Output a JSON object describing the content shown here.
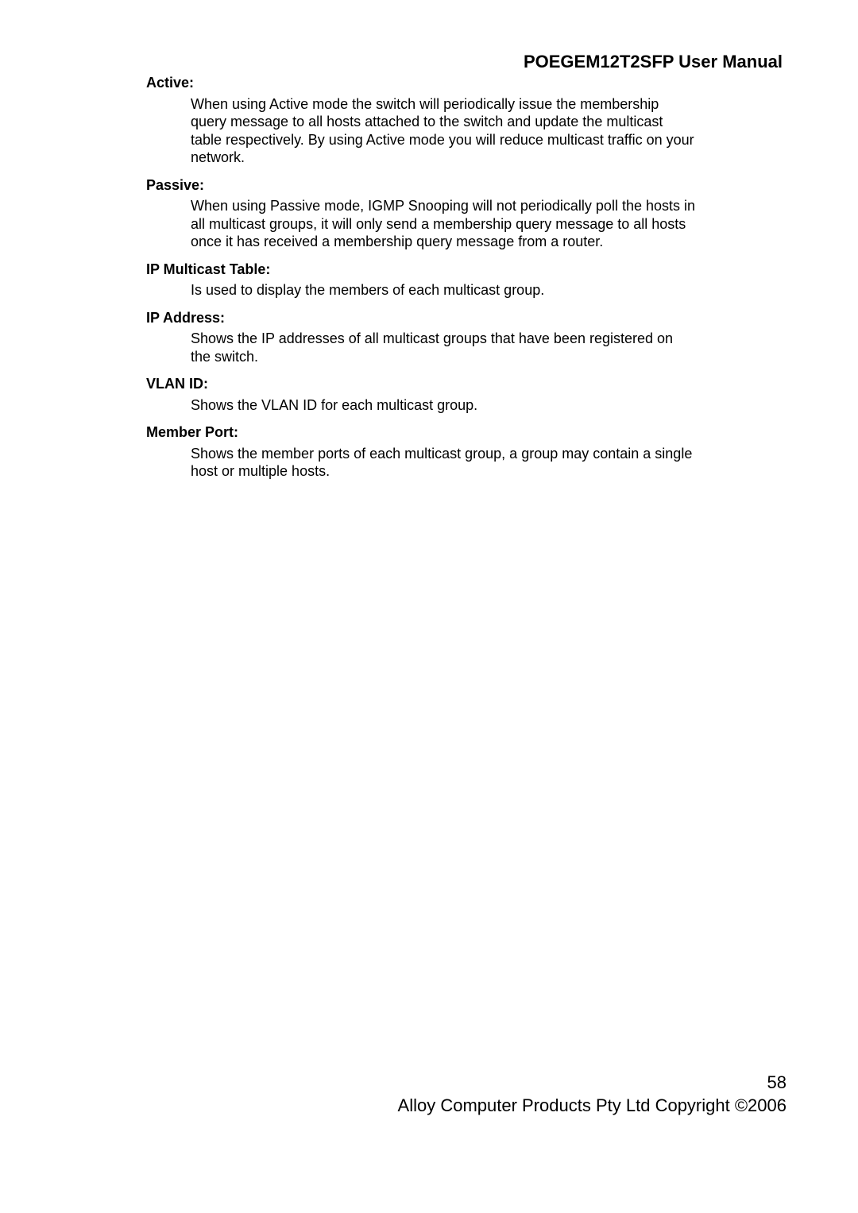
{
  "header": {
    "title": "POEGEM12T2SFP User Manual"
  },
  "sections": [
    {
      "term": "Active:",
      "desc": "When using Active mode the switch will periodically issue the membership query message to all hosts attached to the switch and update the multicast table respectively. By using Active mode you will reduce multicast traffic on your network."
    },
    {
      "term": "Passive:",
      "desc": "When using Passive mode, IGMP Snooping will not periodically poll the hosts in all multicast groups, it will only send a membership query message to all hosts once it has received a membership query message from a router."
    },
    {
      "term": "IP Multicast Table:",
      "desc": "Is used to display the members of each multicast group."
    },
    {
      "term": "IP Address:",
      "desc": "Shows the IP addresses of all multicast groups that have been registered on the switch."
    },
    {
      "term": "VLAN ID:",
      "desc": "Shows the VLAN ID for each multicast group."
    },
    {
      "term": "Member Port:",
      "desc": "Shows the member ports of each multicast group, a group may contain a single host or multiple hosts."
    }
  ],
  "footer": {
    "page_number": "58",
    "copyright": "Alloy Computer Products Pty Ltd Copyright ©2006"
  }
}
